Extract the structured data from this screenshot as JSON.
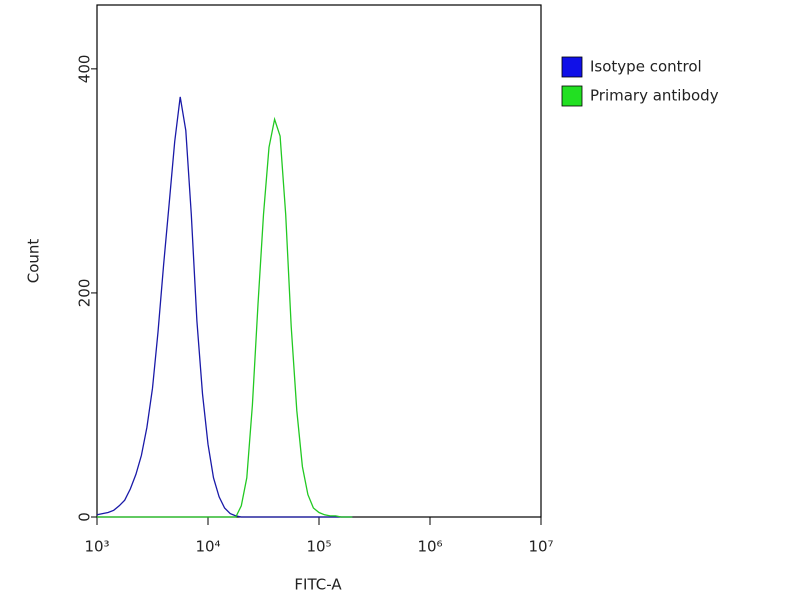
{
  "chart_data": {
    "type": "line",
    "x_label": "FITC-A",
    "y_label": "Count",
    "log_x": true,
    "xlim": [
      1000,
      10000000
    ],
    "xticks": [
      {
        "value": 1000,
        "label": "10³"
      },
      {
        "value": 10000,
        "label": "10⁴"
      },
      {
        "value": 100000,
        "label": "10⁵"
      },
      {
        "value": 1000000,
        "label": "10⁶"
      },
      {
        "value": 10000000,
        "label": "10⁷"
      }
    ],
    "ylim": [
      0,
      457
    ],
    "yticks": [
      0,
      200,
      400
    ],
    "legend": "outside-right",
    "x": [
      1000,
      1122,
      1259,
      1413,
      1585,
      1778,
      1995,
      2239,
      2512,
      2818,
      3162,
      3548,
      3981,
      4467,
      5012,
      5623,
      6310,
      7079,
      7943,
      8913,
      10000,
      11220,
      12589,
      14125,
      15849,
      17783,
      19953,
      22387,
      25119,
      28184,
      31623,
      35481,
      39811,
      44668,
      50119,
      56234,
      63096,
      70795,
      79433,
      89125,
      100000,
      112202,
      125893,
      141254,
      158489,
      177828,
      199526
    ],
    "series": [
      {
        "name": "Isotype control",
        "color": "#1a1aa8",
        "legend_color": "#1010e8",
        "values": [
          2,
          3,
          4,
          6,
          10,
          15,
          25,
          38,
          55,
          80,
          115,
          165,
          225,
          280,
          335,
          375,
          345,
          270,
          175,
          110,
          65,
          35,
          18,
          8,
          3,
          1,
          0,
          0,
          0,
          0,
          0,
          0,
          0,
          0,
          0,
          0,
          0,
          0,
          0,
          0,
          0,
          0,
          0,
          0,
          0,
          0,
          0
        ]
      },
      {
        "name": "Primary antibody",
        "color": "#22c922",
        "legend_color": "#22e022",
        "values": [
          0,
          0,
          0,
          0,
          0,
          0,
          0,
          0,
          0,
          0,
          0,
          0,
          0,
          0,
          0,
          0,
          0,
          0,
          0,
          0,
          0,
          0,
          0,
          0,
          0,
          0,
          10,
          35,
          100,
          190,
          270,
          330,
          355,
          340,
          270,
          170,
          95,
          45,
          20,
          8,
          4,
          2,
          1,
          1,
          0,
          0,
          0
        ]
      }
    ]
  }
}
